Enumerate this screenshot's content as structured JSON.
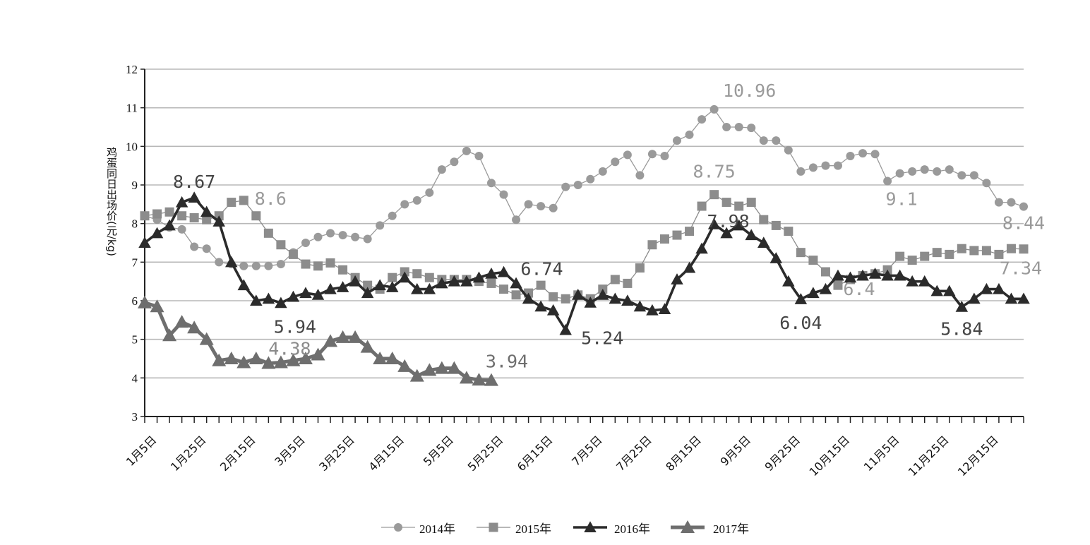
{
  "chart_data": {
    "type": "line",
    "ylabel": "鸡蛋同日出场价(元/kg)",
    "ylim": [
      3,
      12
    ],
    "yticks": [
      3,
      4,
      5,
      6,
      7,
      8,
      9,
      10,
      11,
      12
    ],
    "grid": true,
    "legend_position": "bottom",
    "x_tick_labels": [
      "1月5日",
      "1月25日",
      "2月15日",
      "3月5日",
      "3月25日",
      "4月15日",
      "5月5日",
      "5月25日",
      "6月15日",
      "7月5日",
      "7月25日",
      "8月15日",
      "9月5日",
      "9月25日",
      "10月15日",
      "11月5日",
      "11月25日",
      "12月15日"
    ],
    "series": [
      {
        "name": "2014年",
        "marker": "circle",
        "color": "#9a9a9a",
        "values": [
          8.2,
          8.1,
          7.9,
          7.85,
          7.4,
          7.35,
          7.0,
          6.95,
          6.9,
          6.9,
          6.9,
          6.95,
          7.25,
          7.5,
          7.65,
          7.75,
          7.7,
          7.65,
          7.6,
          7.95,
          8.2,
          8.5,
          8.6,
          8.8,
          9.4,
          9.6,
          9.88,
          9.75,
          9.05,
          8.75,
          8.1,
          8.5,
          8.45,
          8.4,
          8.95,
          9.0,
          9.15,
          9.35,
          9.6,
          9.78,
          9.25,
          9.8,
          9.75,
          10.15,
          10.3,
          10.7,
          10.96,
          10.5,
          10.5,
          10.48,
          10.15,
          10.15,
          9.9,
          9.35,
          9.45,
          9.5,
          9.5,
          9.75,
          9.82,
          9.8,
          9.1,
          9.3,
          9.35,
          9.4,
          9.35,
          9.4,
          9.25,
          9.25,
          9.05,
          8.55,
          8.55,
          8.44
        ]
      },
      {
        "name": "2015年",
        "marker": "square",
        "color": "#8c8c8c",
        "values": [
          8.2,
          8.25,
          8.3,
          8.2,
          8.15,
          8.1,
          8.2,
          8.55,
          8.6,
          8.2,
          7.75,
          7.45,
          7.2,
          6.95,
          6.9,
          6.98,
          6.8,
          6.6,
          6.4,
          6.3,
          6.6,
          6.75,
          6.7,
          6.6,
          6.55,
          6.55,
          6.55,
          6.5,
          6.45,
          6.3,
          6.15,
          6.2,
          6.4,
          6.1,
          6.05,
          6.15,
          6.05,
          6.3,
          6.55,
          6.45,
          6.85,
          7.45,
          7.6,
          7.7,
          7.8,
          8.45,
          8.75,
          8.55,
          8.45,
          8.55,
          8.1,
          7.95,
          7.8,
          7.25,
          7.05,
          6.75,
          6.4,
          6.55,
          6.65,
          6.7,
          6.8,
          7.15,
          7.05,
          7.15,
          7.25,
          7.2,
          7.35,
          7.3,
          7.3,
          7.2,
          7.35,
          7.34
        ]
      },
      {
        "name": "2016年",
        "marker": "triangle",
        "color": "#2b2b2b",
        "values": [
          7.5,
          7.75,
          7.95,
          8.55,
          8.67,
          8.3,
          8.05,
          7.0,
          6.4,
          6.0,
          6.05,
          5.94,
          6.1,
          6.2,
          6.15,
          6.3,
          6.35,
          6.5,
          6.2,
          6.4,
          6.35,
          6.6,
          6.3,
          6.3,
          6.45,
          6.5,
          6.5,
          6.6,
          6.7,
          6.74,
          6.45,
          6.05,
          5.85,
          5.75,
          5.24,
          6.15,
          5.95,
          6.15,
          6.05,
          6.0,
          5.85,
          5.75,
          5.78,
          6.55,
          6.85,
          7.35,
          7.98,
          7.75,
          7.95,
          7.7,
          7.5,
          7.1,
          6.5,
          6.04,
          6.2,
          6.3,
          6.65,
          6.6,
          6.65,
          6.7,
          6.65,
          6.65,
          6.5,
          6.5,
          6.25,
          6.25,
          5.84,
          6.05,
          6.3,
          6.3,
          6.05,
          6.05
        ]
      },
      {
        "name": "2017年",
        "marker": "triangle",
        "color": "#6e6e6e",
        "values": [
          5.95,
          5.85,
          5.1,
          5.45,
          5.3,
          5.0,
          4.45,
          4.5,
          4.4,
          4.5,
          4.38,
          4.4,
          4.45,
          4.5,
          4.6,
          4.95,
          5.05,
          5.05,
          4.8,
          4.5,
          4.5,
          4.3,
          4.05,
          4.2,
          4.25,
          4.25,
          4.0,
          3.95,
          3.94
        ]
      }
    ],
    "annotations": [
      {
        "text": "8.67",
        "series": "2016年",
        "index": 4,
        "color": "#444444"
      },
      {
        "text": "8.6",
        "series": "2015年",
        "index": 8,
        "color": "#9a9a9a"
      },
      {
        "text": "5.94",
        "series": "2016年",
        "index": 11,
        "color": "#444444"
      },
      {
        "text": "4.38",
        "series": "2017年",
        "index": 10,
        "color": "#8a8a8a"
      },
      {
        "text": "3.94",
        "series": "2017年",
        "index": 28,
        "color": "#6e6e6e"
      },
      {
        "text": "6.74",
        "series": "2016年",
        "index": 29,
        "color": "#444444"
      },
      {
        "text": "5.24",
        "series": "2016年",
        "index": 34,
        "color": "#444444"
      },
      {
        "text": "10.96",
        "series": "2014年",
        "index": 46,
        "color": "#9a9a9a"
      },
      {
        "text": "8.75",
        "series": "2015年",
        "index": 46,
        "color": "#9a9a9a"
      },
      {
        "text": "7.98",
        "series": "2016年",
        "index": 46,
        "color": "#444444"
      },
      {
        "text": "6.04",
        "series": "2016年",
        "index": 53,
        "color": "#444444"
      },
      {
        "text": "6.4",
        "series": "2015年",
        "index": 56,
        "color": "#9a9a9a"
      },
      {
        "text": "9.1",
        "series": "2014年",
        "index": 60,
        "color": "#9a9a9a"
      },
      {
        "text": "5.84",
        "series": "2016年",
        "index": 66,
        "color": "#444444"
      },
      {
        "text": "8.44",
        "series": "2014年",
        "index": 71,
        "color": "#9a9a9a"
      },
      {
        "text": "7.34",
        "series": "2015年",
        "index": 71,
        "color": "#9a9a9a"
      }
    ]
  }
}
